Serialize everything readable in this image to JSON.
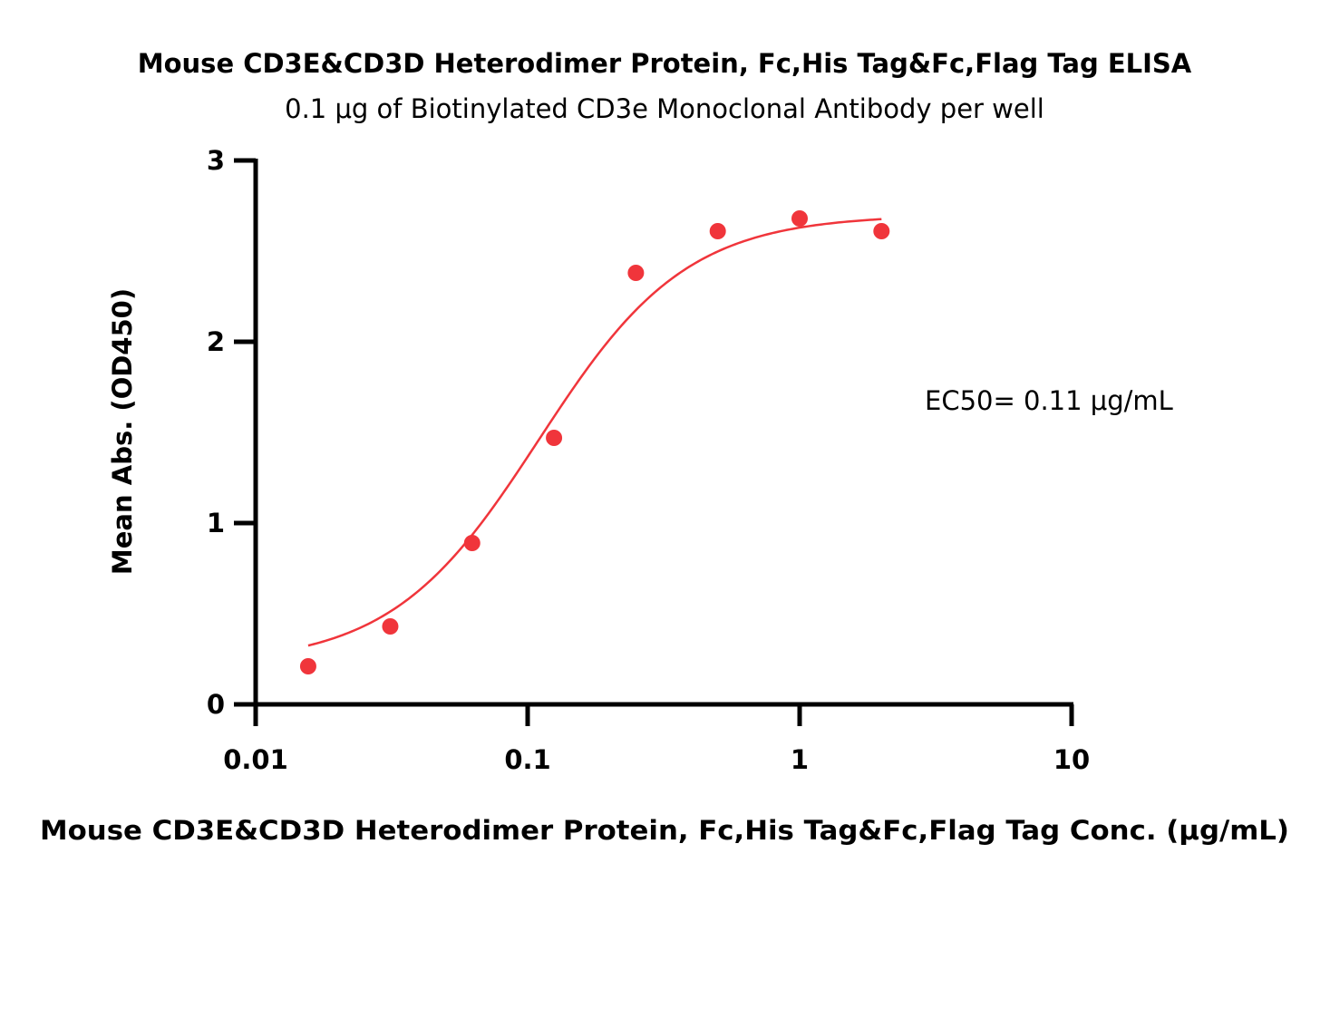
{
  "chart_data": {
    "type": "scatter",
    "title": "Mouse CD3E&CD3D Heterodimer Protein, Fc,His Tag&Fc,Flag Tag ELISA",
    "subtitle": "0.1 μg of Biotinylated CD3e Monoclonal Antibody per well",
    "xlabel": "Mouse CD3E&CD3D Heterodimer Protein, Fc,His Tag&Fc,Flag Tag Conc. (μg/mL)",
    "ylabel": "Mean Abs. (OD450)",
    "xscale": "log",
    "xlim": [
      0.01,
      10
    ],
    "ylim": [
      0,
      3
    ],
    "x_ticks": [
      0.01,
      0.1,
      1,
      10
    ],
    "x_tick_labels": [
      "0.01",
      "0.1",
      "1",
      "10"
    ],
    "y_ticks": [
      0,
      1,
      2,
      3
    ],
    "y_tick_labels": [
      "0",
      "1",
      "2",
      "3"
    ],
    "grid": false,
    "color": "#f0353b",
    "series": [
      {
        "x": [
          0.0156,
          0.03125,
          0.0625,
          0.125,
          0.25,
          0.5,
          1,
          2
        ],
        "y": [
          0.21,
          0.43,
          0.89,
          1.47,
          2.38,
          2.61,
          2.68,
          2.61
        ]
      }
    ],
    "fit": {
      "type": "4PL",
      "bottom": 0.22,
      "top": 2.7,
      "ec50": 0.11,
      "hill": 1.6,
      "x_range": [
        0.0156,
        2
      ]
    },
    "annotations": [
      {
        "text": "EC50= 0.11 μg/mL"
      }
    ]
  }
}
